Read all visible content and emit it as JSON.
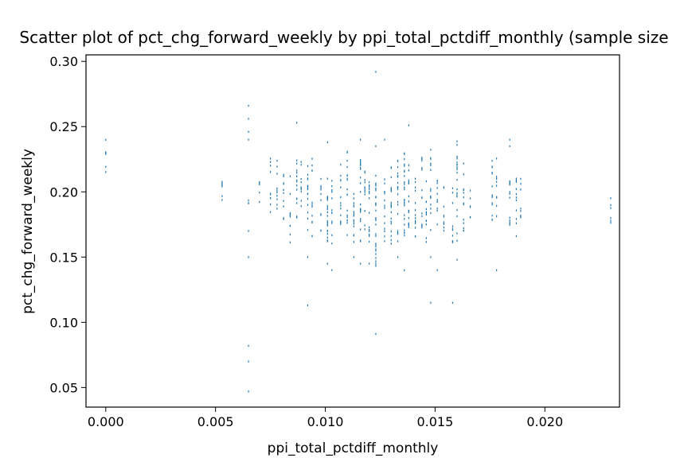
{
  "chart_data": {
    "type": "scatter",
    "title": "Scatter plot of pct_chg_forward_weekly by ppi_total_pctdiff_monthly (sample size",
    "xlabel": "ppi_total_pctdiff_monthly",
    "ylabel": "pct_chg_forward_weekly",
    "xlim": [
      -0.0009,
      0.0234
    ],
    "ylim": [
      0.035,
      0.305
    ],
    "xticks": [
      0.0,
      0.005,
      0.01,
      0.015,
      0.02
    ],
    "xtick_labels": [
      "0.000",
      "0.005",
      "0.010",
      "0.015",
      "0.020"
    ],
    "yticks": [
      0.05,
      0.1,
      0.15,
      0.2,
      0.25,
      0.3
    ],
    "ytick_labels": [
      "0.05",
      "0.10",
      "0.15",
      "0.20",
      "0.25",
      "0.30"
    ],
    "grid": false,
    "color": "#1f77b4",
    "marker": "point",
    "columns": [
      {
        "x": 0.0,
        "lo": 0.21,
        "hi": 0.24,
        "n": 7,
        "extra": []
      },
      {
        "x": 0.0053,
        "lo": 0.19,
        "hi": 0.21,
        "n": 7,
        "extra": []
      },
      {
        "x": 0.0065,
        "lo": 0.19,
        "hi": 0.196,
        "n": 3,
        "extra": [
          0.047,
          0.07,
          0.082,
          0.15,
          0.17,
          0.24,
          0.246,
          0.256,
          0.266
        ]
      },
      {
        "x": 0.007,
        "lo": 0.19,
        "hi": 0.21,
        "n": 5,
        "extra": []
      },
      {
        "x": 0.0075,
        "lo": 0.175,
        "hi": 0.23,
        "n": 10,
        "extra": []
      },
      {
        "x": 0.0078,
        "lo": 0.18,
        "hi": 0.225,
        "n": 10,
        "extra": []
      },
      {
        "x": 0.0081,
        "lo": 0.175,
        "hi": 0.22,
        "n": 10,
        "extra": []
      },
      {
        "x": 0.0084,
        "lo": 0.16,
        "hi": 0.215,
        "n": 10,
        "extra": []
      },
      {
        "x": 0.0087,
        "lo": 0.18,
        "hi": 0.232,
        "n": 14,
        "extra": [
          0.253
        ]
      },
      {
        "x": 0.0089,
        "lo": 0.18,
        "hi": 0.225,
        "n": 10,
        "extra": []
      },
      {
        "x": 0.0092,
        "lo": 0.17,
        "hi": 0.22,
        "n": 16,
        "extra": [
          0.113,
          0.15
        ]
      },
      {
        "x": 0.0094,
        "lo": 0.16,
        "hi": 0.23,
        "n": 12,
        "extra": []
      },
      {
        "x": 0.0098,
        "lo": 0.17,
        "hi": 0.21,
        "n": 10,
        "extra": []
      },
      {
        "x": 0.0101,
        "lo": 0.155,
        "hi": 0.215,
        "n": 22,
        "extra": [
          0.145,
          0.165,
          0.238
        ]
      },
      {
        "x": 0.0103,
        "lo": 0.16,
        "hi": 0.21,
        "n": 12,
        "extra": [
          0.14
        ]
      },
      {
        "x": 0.0107,
        "lo": 0.17,
        "hi": 0.225,
        "n": 14,
        "extra": []
      },
      {
        "x": 0.011,
        "lo": 0.16,
        "hi": 0.232,
        "n": 18,
        "extra": []
      },
      {
        "x": 0.0113,
        "lo": 0.16,
        "hi": 0.21,
        "n": 16,
        "extra": [
          0.15
        ]
      },
      {
        "x": 0.0116,
        "lo": 0.16,
        "hi": 0.225,
        "n": 22,
        "extra": [
          0.145,
          0.24
        ]
      },
      {
        "x": 0.0118,
        "lo": 0.17,
        "hi": 0.22,
        "n": 12,
        "extra": []
      },
      {
        "x": 0.012,
        "lo": 0.155,
        "hi": 0.21,
        "n": 14,
        "extra": [
          0.145
        ]
      },
      {
        "x": 0.0123,
        "lo": 0.14,
        "hi": 0.22,
        "n": 30,
        "extra": [
          0.091,
          0.292,
          0.235
        ]
      },
      {
        "x": 0.0127,
        "lo": 0.16,
        "hi": 0.21,
        "n": 14,
        "extra": [
          0.24
        ]
      },
      {
        "x": 0.013,
        "lo": 0.16,
        "hi": 0.22,
        "n": 20,
        "extra": []
      },
      {
        "x": 0.0133,
        "lo": 0.16,
        "hi": 0.225,
        "n": 20,
        "extra": [
          0.15
        ]
      },
      {
        "x": 0.0136,
        "lo": 0.165,
        "hi": 0.23,
        "n": 24,
        "extra": [
          0.14
        ]
      },
      {
        "x": 0.0138,
        "lo": 0.17,
        "hi": 0.225,
        "n": 16,
        "extra": [
          0.251
        ]
      },
      {
        "x": 0.0141,
        "lo": 0.165,
        "hi": 0.22,
        "n": 14,
        "extra": []
      },
      {
        "x": 0.0144,
        "lo": 0.17,
        "hi": 0.23,
        "n": 14,
        "extra": []
      },
      {
        "x": 0.0146,
        "lo": 0.16,
        "hi": 0.21,
        "n": 12,
        "extra": []
      },
      {
        "x": 0.0148,
        "lo": 0.16,
        "hi": 0.235,
        "n": 16,
        "extra": [
          0.115,
          0.15
        ]
      },
      {
        "x": 0.0151,
        "lo": 0.17,
        "hi": 0.21,
        "n": 10,
        "extra": [
          0.14
        ]
      },
      {
        "x": 0.0154,
        "lo": 0.17,
        "hi": 0.21,
        "n": 10,
        "extra": []
      },
      {
        "x": 0.0158,
        "lo": 0.15,
        "hi": 0.205,
        "n": 10,
        "extra": [
          0.115
        ]
      },
      {
        "x": 0.016,
        "lo": 0.16,
        "hi": 0.242,
        "n": 20,
        "extra": [
          0.148
        ]
      },
      {
        "x": 0.0163,
        "lo": 0.17,
        "hi": 0.225,
        "n": 14,
        "extra": []
      },
      {
        "x": 0.0166,
        "lo": 0.18,
        "hi": 0.205,
        "n": 6,
        "extra": []
      },
      {
        "x": 0.0176,
        "lo": 0.175,
        "hi": 0.225,
        "n": 14,
        "extra": []
      },
      {
        "x": 0.0178,
        "lo": 0.18,
        "hi": 0.23,
        "n": 10,
        "extra": [
          0.14
        ]
      },
      {
        "x": 0.0184,
        "lo": 0.17,
        "hi": 0.215,
        "n": 14,
        "extra": [
          0.235,
          0.24
        ]
      },
      {
        "x": 0.0187,
        "lo": 0.165,
        "hi": 0.215,
        "n": 12,
        "extra": []
      },
      {
        "x": 0.0189,
        "lo": 0.175,
        "hi": 0.21,
        "n": 8,
        "extra": []
      },
      {
        "x": 0.023,
        "lo": 0.17,
        "hi": 0.198,
        "n": 6,
        "extra": []
      }
    ]
  }
}
